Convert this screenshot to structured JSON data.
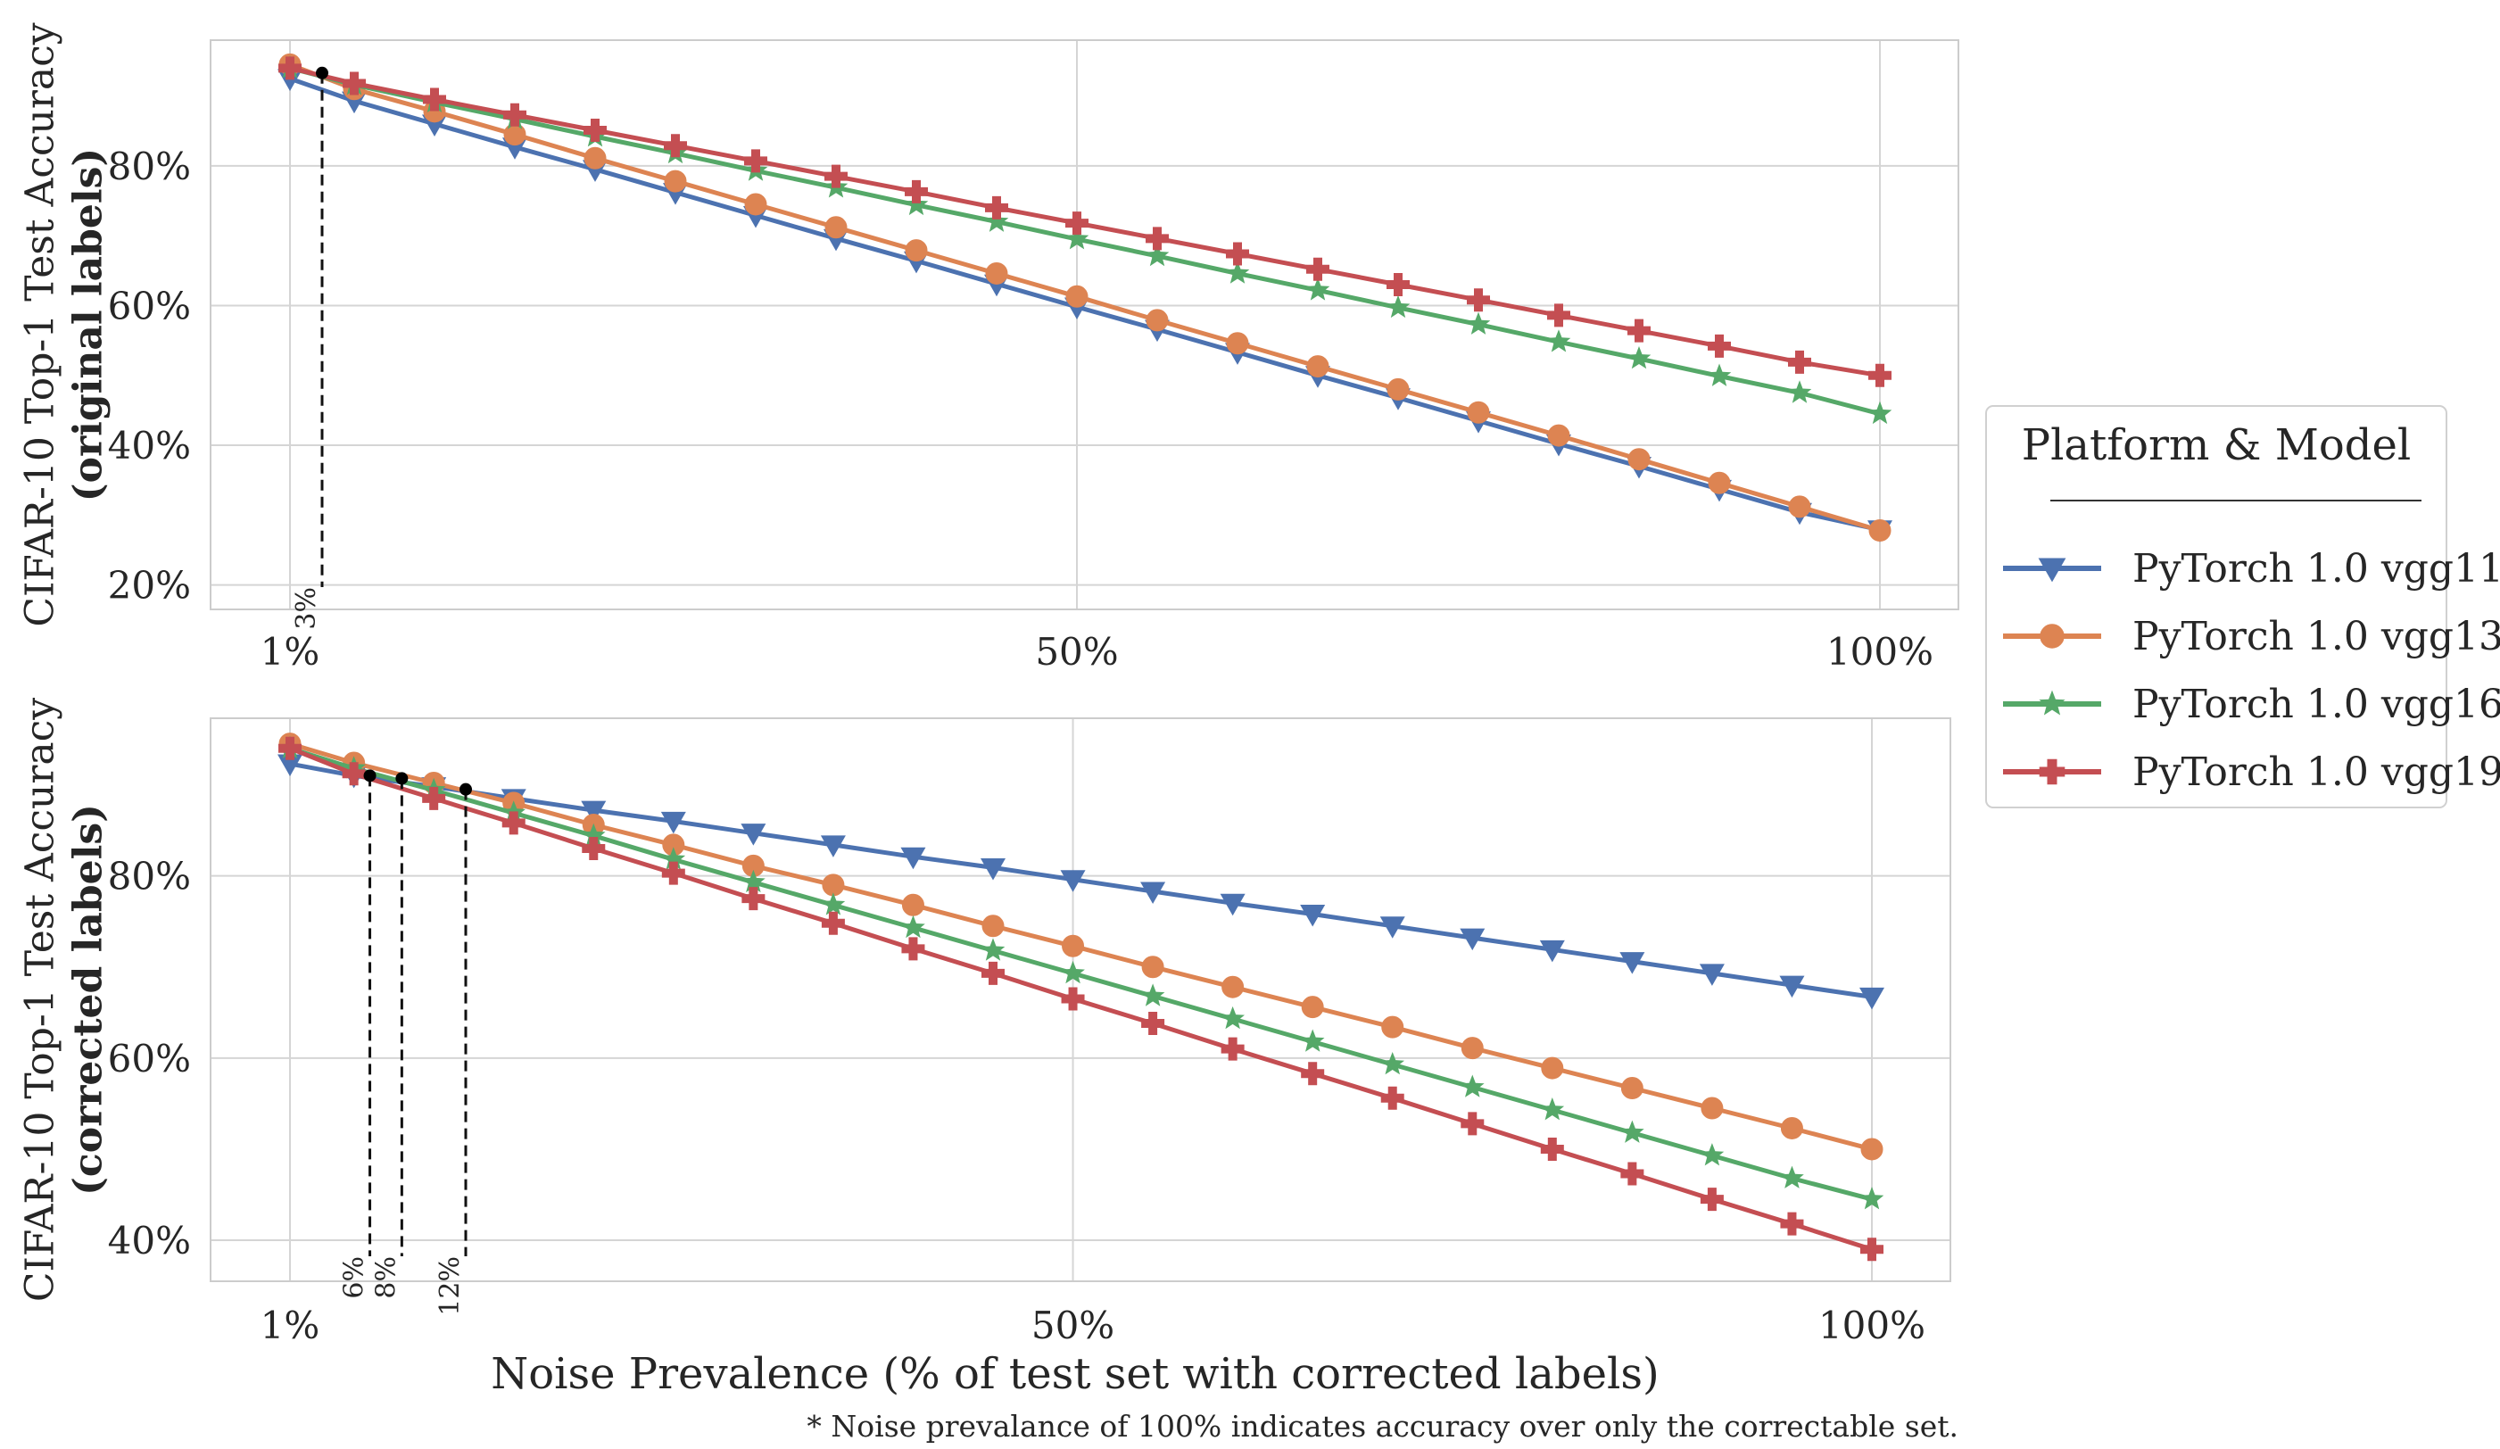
{
  "chart_data": [
    {
      "type": "line",
      "ylabel_line1": "CIFAR-10 Top-1 Test Accuracy",
      "ylabel_line2": "(original labels)",
      "xlabel": "",
      "x": [
        1,
        5,
        10,
        15,
        20,
        25,
        30,
        35,
        40,
        45,
        50,
        55,
        60,
        65,
        70,
        75,
        80,
        85,
        90,
        95,
        100
      ],
      "x_tick_labels": [
        "1%",
        "50%",
        "100%"
      ],
      "x_ticks": [
        1,
        50,
        100
      ],
      "y_tick_labels": [
        "20%",
        "40%",
        "60%",
        "80%"
      ],
      "y_ticks": [
        20,
        40,
        60,
        80
      ],
      "ylim": [
        16.5,
        98
      ],
      "grid": true,
      "series": [
        {
          "name": "PyTorch 1.0 vgg11",
          "color": "#4c72b0",
          "marker": "triangle-down",
          "values": [
            92.5,
            89.3,
            86.0,
            82.7,
            79.5,
            76.2,
            72.9,
            69.6,
            66.4,
            63.1,
            59.8,
            56.6,
            53.3,
            50.0,
            46.8,
            43.5,
            40.2,
            37.0,
            33.7,
            30.4,
            27.9
          ]
        },
        {
          "name": "PyTorch 1.0 vgg13",
          "color": "#dd8452",
          "marker": "circle",
          "values": [
            94.5,
            91.0,
            87.8,
            84.5,
            81.1,
            77.8,
            74.5,
            71.2,
            67.9,
            64.6,
            61.3,
            57.9,
            54.6,
            51.3,
            48.0,
            44.7,
            41.4,
            38.0,
            34.6,
            31.2,
            27.8
          ]
        },
        {
          "name": "PyTorch 1.0 vgg16",
          "color": "#55a868",
          "marker": "star",
          "values": [
            94.0,
            91.6,
            89.1,
            86.7,
            84.2,
            81.8,
            79.3,
            76.9,
            74.4,
            72.0,
            69.5,
            67.1,
            64.6,
            62.2,
            59.7,
            57.3,
            54.8,
            52.4,
            49.9,
            47.5,
            44.5
          ]
        },
        {
          "name": "PyTorch 1.0 vgg19",
          "color": "#c44e52",
          "marker": "plus",
          "values": [
            94.0,
            91.8,
            89.5,
            87.3,
            85.1,
            82.9,
            80.7,
            78.5,
            76.3,
            74.0,
            71.8,
            69.6,
            67.4,
            65.2,
            63.0,
            60.8,
            58.6,
            56.4,
            54.2,
            51.9,
            50.0
          ]
        }
      ],
      "annotations": [
        {
          "label": "3%",
          "x": 3,
          "y": 93.3
        }
      ]
    },
    {
      "type": "line",
      "ylabel_line1": "CIFAR-10 Top-1 Test Accuracy",
      "ylabel_line2": "(corrected labels)",
      "xlabel": "Noise Prevalence (% of test set with corrected labels)",
      "x": [
        1,
        5,
        10,
        15,
        20,
        25,
        30,
        35,
        40,
        45,
        50,
        55,
        60,
        65,
        70,
        75,
        80,
        85,
        90,
        95,
        100
      ],
      "x_tick_labels": [
        "1%",
        "50%",
        "100%"
      ],
      "x_ticks": [
        1,
        50,
        100
      ],
      "y_tick_labels": [
        "40%",
        "60%",
        "80%"
      ],
      "y_ticks": [
        40,
        60,
        80
      ],
      "ylim": [
        35.5,
        97.3
      ],
      "grid": true,
      "series": [
        {
          "name": "PyTorch 1.0 vgg11",
          "color": "#4c72b0",
          "marker": "triangle-down",
          "values": [
            92.3,
            91.0,
            89.8,
            88.5,
            87.2,
            86.0,
            84.7,
            83.4,
            82.1,
            80.9,
            79.6,
            78.3,
            77.0,
            75.8,
            74.5,
            73.2,
            71.9,
            70.6,
            69.3,
            68.0,
            66.7
          ]
        },
        {
          "name": "PyTorch 1.0 vgg13",
          "color": "#dd8452",
          "marker": "circle",
          "values": [
            94.5,
            92.4,
            90.2,
            88.0,
            85.6,
            83.4,
            81.1,
            79.0,
            76.8,
            74.5,
            72.3,
            70.0,
            67.8,
            65.6,
            63.4,
            61.1,
            58.9,
            56.7,
            54.5,
            52.3,
            50.0
          ]
        },
        {
          "name": "PyTorch 1.0 vgg16",
          "color": "#55a868",
          "marker": "star",
          "values": [
            94.0,
            91.8,
            89.4,
            86.9,
            84.4,
            81.8,
            79.3,
            76.8,
            74.3,
            71.8,
            69.3,
            66.8,
            64.3,
            61.8,
            59.3,
            56.8,
            54.3,
            51.8,
            49.3,
            46.8,
            44.5
          ]
        },
        {
          "name": "PyTorch 1.0 vgg19",
          "color": "#c44e52",
          "marker": "plus",
          "values": [
            94.0,
            91.2,
            88.5,
            85.8,
            83.0,
            80.3,
            77.5,
            74.8,
            72.0,
            69.3,
            66.5,
            63.8,
            61.0,
            58.3,
            55.6,
            52.8,
            50.0,
            47.3,
            44.5,
            41.8,
            39.0
          ]
        }
      ],
      "annotations": [
        {
          "label": "6%",
          "x": 6,
          "y": 91.0
        },
        {
          "label": "8%",
          "x": 8,
          "y": 90.7
        },
        {
          "label": "12%",
          "x": 12,
          "y": 89.5
        }
      ]
    }
  ],
  "legend": {
    "title": "Platform & Model",
    "placement": "right",
    "items": [
      "PyTorch 1.0 vgg11",
      "PyTorch 1.0 vgg13",
      "PyTorch 1.0 vgg16",
      "PyTorch 1.0 vgg19"
    ]
  },
  "footnote": "* Noise prevalance of 100% indicates accuracy over only the correctable set."
}
